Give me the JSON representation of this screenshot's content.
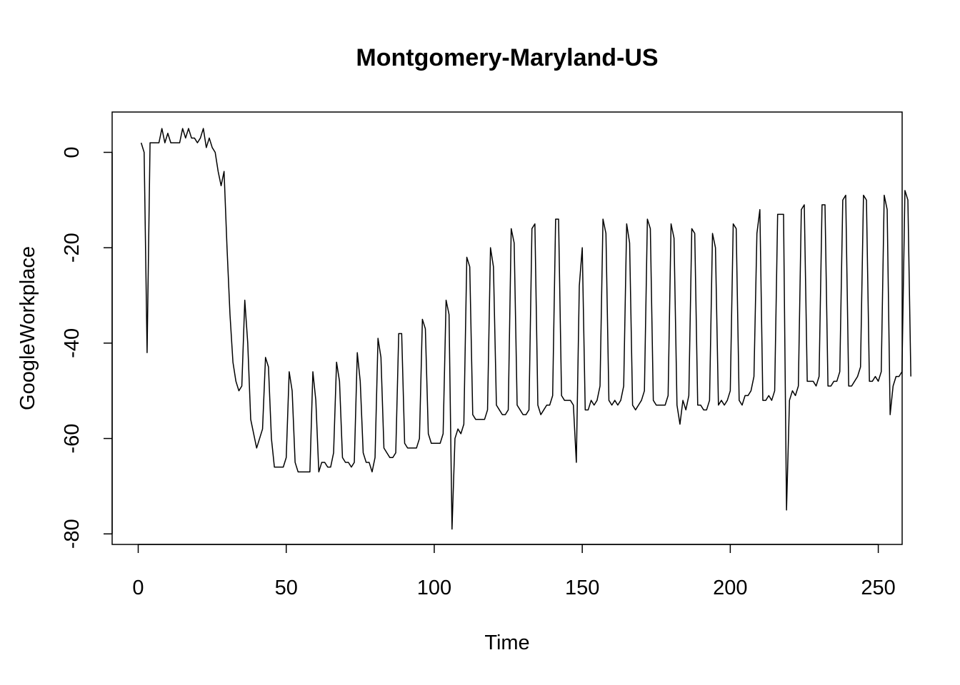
{
  "chart_data": {
    "type": "line",
    "title": "Montgomery-Maryland-US",
    "xlabel": "Time",
    "ylabel": "GoogleWorkplace",
    "xlim": [
      1,
      248
    ],
    "ylim": [
      -80,
      5
    ],
    "xticks": [
      0,
      50,
      100,
      150,
      200,
      250
    ],
    "yticks": [
      -80,
      -60,
      -40,
      -20,
      0
    ],
    "grid": false,
    "series": [
      {
        "values": [
          2,
          0,
          -42,
          2,
          2,
          2,
          2,
          5,
          2,
          4,
          2,
          2,
          2,
          2,
          5,
          3,
          5,
          3,
          3,
          2,
          3,
          5,
          1,
          3,
          1,
          0,
          -4,
          -7,
          -4,
          -20,
          -34,
          -44,
          -48,
          -50,
          -49,
          -31,
          -40,
          -56,
          -59,
          -62,
          -60,
          -58,
          -43,
          -45,
          -60,
          -66,
          -66,
          -66,
          -66,
          -64,
          -46,
          -50,
          -65,
          -67,
          -67,
          -67,
          -67,
          -67,
          -46,
          -52,
          -67,
          -65,
          -65,
          -66,
          -66,
          -63,
          -44,
          -48,
          -64,
          -65,
          -65,
          -66,
          -65,
          -42,
          -48,
          -63,
          -65,
          -65,
          -67,
          -64,
          -39,
          -43,
          -62,
          -63,
          -64,
          -64,
          -63,
          -38,
          -38,
          -61,
          -62,
          -62,
          -62,
          -62,
          -60,
          -35,
          -37,
          -59,
          -61,
          -61,
          -61,
          -61,
          -59,
          -31,
          -34,
          -79,
          -60,
          -58,
          -59,
          -57,
          -22,
          -24,
          -55,
          -56,
          -56,
          -56,
          -56,
          -54,
          -20,
          -24,
          -53,
          -54,
          -55,
          -55,
          -54,
          -16,
          -19,
          -53,
          -54,
          -55,
          -55,
          -54,
          -16,
          -15,
          -53,
          -55,
          -54,
          -53,
          -53,
          -51,
          -14,
          -14,
          -51,
          -52,
          -52,
          -52,
          -53,
          -65,
          -28,
          -20,
          -54,
          -54,
          -52,
          -53,
          -52,
          -49,
          -14,
          -17,
          -52,
          -53,
          -52,
          -53,
          -52,
          -49,
          -15,
          -19,
          -53,
          -54,
          -53,
          -52,
          -50,
          -14,
          -16,
          -52,
          -53,
          -53,
          -53,
          -53,
          -51,
          -15,
          -18,
          -53,
          -57,
          -52,
          -54,
          -51,
          -16,
          -17,
          -53,
          -53,
          -54,
          -54,
          -52,
          -17,
          -20,
          -53,
          -52,
          -53,
          -52,
          -50,
          -15,
          -16,
          -52,
          -53,
          -51,
          -51,
          -50,
          -47,
          -17,
          -12,
          -52,
          -52,
          -51,
          -52,
          -50,
          -13,
          -13,
          -13,
          -75,
          -52,
          -50,
          -51,
          -49,
          -12,
          -11,
          -48,
          -48,
          -48,
          -49,
          -47,
          -11,
          -11,
          -49,
          -49,
          -48,
          -48,
          -46,
          -10,
          -9,
          -49,
          -49,
          -48,
          -47,
          -45,
          -9,
          -10,
          -48,
          -48,
          -47,
          -48,
          -46,
          -9,
          -12,
          -55,
          -49,
          -47,
          -47,
          -46,
          -8,
          -10,
          -47
        ]
      }
    ]
  }
}
